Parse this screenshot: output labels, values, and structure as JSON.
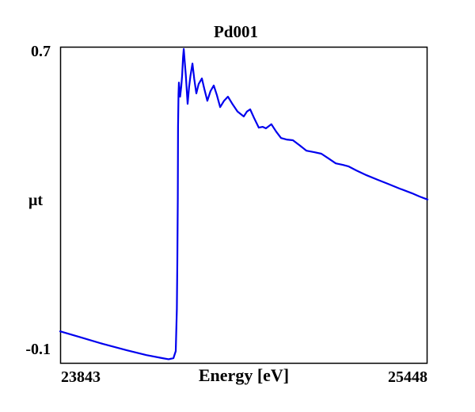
{
  "chart": {
    "title": "Pd001",
    "y_axis_label": "μt",
    "x_axis_label": "Energy [eV]",
    "y_tick_top": "0.7",
    "y_tick_bottom": "-0.1",
    "x_tick_left": "23843",
    "x_tick_right": "25448",
    "line_color": "#0000EE",
    "border_color": "#000000",
    "background_color": "#FFFFFF"
  },
  "chart_data": {
    "type": "line",
    "title": "Pd001",
    "xlabel": "Energy [eV]",
    "ylabel": "μt",
    "xlim": [
      23843,
      25448
    ],
    "ylim": [
      -0.132,
      0.719
    ],
    "x_ticks": [
      23843,
      25448
    ],
    "y_ticks": [
      -0.1,
      0.7
    ],
    "grid": false,
    "legend": false,
    "description": "X-ray absorption spectrum (Pd K-edge XAFS), sharp absorption edge near 24355 eV followed by decaying EXAFS oscillations",
    "series": [
      {
        "name": "Pd001",
        "color": "#0000EE",
        "x": [
          23843,
          23926,
          24030,
          24134,
          24220,
          24289,
          24317,
          24338,
          24348,
          24353,
          24355,
          24357,
          24358,
          24360,
          24362,
          24367,
          24372,
          24376,
          24380,
          24383,
          24387,
          24392,
          24400,
          24406,
          24412,
          24421,
          24429,
          24438,
          24448,
          24462,
          24473,
          24486,
          24500,
          24514,
          24528,
          24542,
          24559,
          24576,
          24597,
          24618,
          24645,
          24659,
          24673,
          24690,
          24711,
          24728,
          24742,
          24766,
          24787,
          24808,
          24832,
          24860,
          24888,
          24919,
          24953,
          24984,
          25016,
          25047,
          25078,
          25102,
          25137,
          25182,
          25230,
          25275,
          25327,
          25379,
          25413,
          25448
        ],
        "y": [
          -0.045,
          -0.06,
          -0.079,
          -0.096,
          -0.109,
          -0.117,
          -0.12,
          -0.117,
          -0.098,
          0.015,
          0.143,
          0.313,
          0.504,
          0.594,
          0.623,
          0.585,
          0.611,
          0.643,
          0.69,
          0.713,
          0.68,
          0.643,
          0.566,
          0.61,
          0.64,
          0.674,
          0.632,
          0.594,
          0.619,
          0.634,
          0.606,
          0.574,
          0.6,
          0.615,
          0.589,
          0.557,
          0.574,
          0.585,
          0.564,
          0.545,
          0.532,
          0.545,
          0.551,
          0.528,
          0.502,
          0.504,
          0.5,
          0.511,
          0.491,
          0.474,
          0.47,
          0.468,
          0.455,
          0.44,
          0.436,
          0.432,
          0.419,
          0.406,
          0.402,
          0.398,
          0.387,
          0.374,
          0.362,
          0.351,
          0.338,
          0.326,
          0.317,
          0.309
        ]
      }
    ]
  }
}
